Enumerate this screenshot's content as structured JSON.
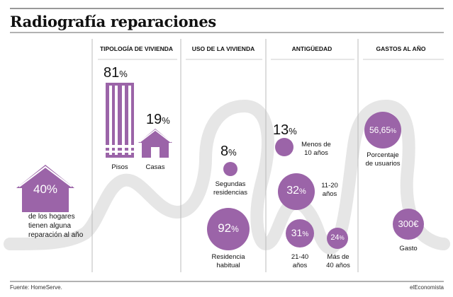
{
  "title": "Radiografía reparaciones",
  "headers": [
    "TIPOLOGÍA DE VIVIENDA",
    "USO DE LA VIVIENDA",
    "ANTIGÜEDAD",
    "GASTOS AL AÑO"
  ],
  "colors": {
    "purple": "#9b64a8",
    "light_purple": "#c9a3cf",
    "wave": "#e6e6e6",
    "lines": "#bbbbbb"
  },
  "icons": {
    "house": "house-icon",
    "building": "building-icon"
  },
  "intro": {
    "value": "40%",
    "text": "de los hogares tienen alguna reparación al año"
  },
  "tipologia": {
    "pisos": {
      "value": "81",
      "unit": "%",
      "label": "Pisos"
    },
    "casas": {
      "value": "19",
      "unit": "%",
      "label": "Casas"
    }
  },
  "uso": {
    "segundas": {
      "value": "8",
      "unit": "%",
      "label_line1": "Segundas",
      "label_line2": "residencias"
    },
    "habitual": {
      "value": "92",
      "unit": "%",
      "label_line1": "Residencia",
      "label_line2": "habitual"
    }
  },
  "antiguedad": {
    "menos10": {
      "value": "13",
      "unit": "%",
      "label_line1": "Menos de",
      "label_line2": "10 años"
    },
    "r11_20": {
      "value": "32",
      "unit": "%",
      "label_line1": "11-20",
      "label_line2": "años"
    },
    "r21_40": {
      "value": "31",
      "unit": "%",
      "label_line1": "21-40",
      "label_line2": "años"
    },
    "mas40": {
      "value": "24",
      "unit": "%",
      "label_line1": "Más de",
      "label_line2": "40 años"
    }
  },
  "gastos": {
    "usuarios": {
      "value": "56,65",
      "unit": "%",
      "label_line1": "Porcentaje",
      "label_line2": "de usuarios"
    },
    "gasto": {
      "value": "300€",
      "label": "Gasto"
    }
  },
  "footer": {
    "source": "Fuente: HomeServe.",
    "brand": "elEconomista"
  },
  "chart_data": {
    "type": "bar",
    "groups": [
      {
        "group": "TIPOLOGÍA DE VIVIENDA",
        "categories": [
          "Pisos",
          "Casas"
        ],
        "values": [
          81,
          19
        ],
        "unit": "%"
      },
      {
        "group": "USO DE LA VIVIENDA",
        "categories": [
          "Segundas residencias",
          "Residencia habitual"
        ],
        "values": [
          8,
          92
        ],
        "unit": "%"
      },
      {
        "group": "ANTIGÜEDAD",
        "categories": [
          "Menos de 10 años",
          "11-20 años",
          "21-40 años",
          "Más de 40 años"
        ],
        "values": [
          13,
          32,
          31,
          24
        ],
        "unit": "%"
      },
      {
        "group": "GASTOS AL AÑO",
        "categories": [
          "Porcentaje de usuarios",
          "Gasto"
        ],
        "values": [
          56.65,
          300
        ],
        "units": [
          "%",
          "€"
        ]
      }
    ],
    "annotations": [
      "40% de los hogares tienen alguna reparación al año"
    ]
  }
}
